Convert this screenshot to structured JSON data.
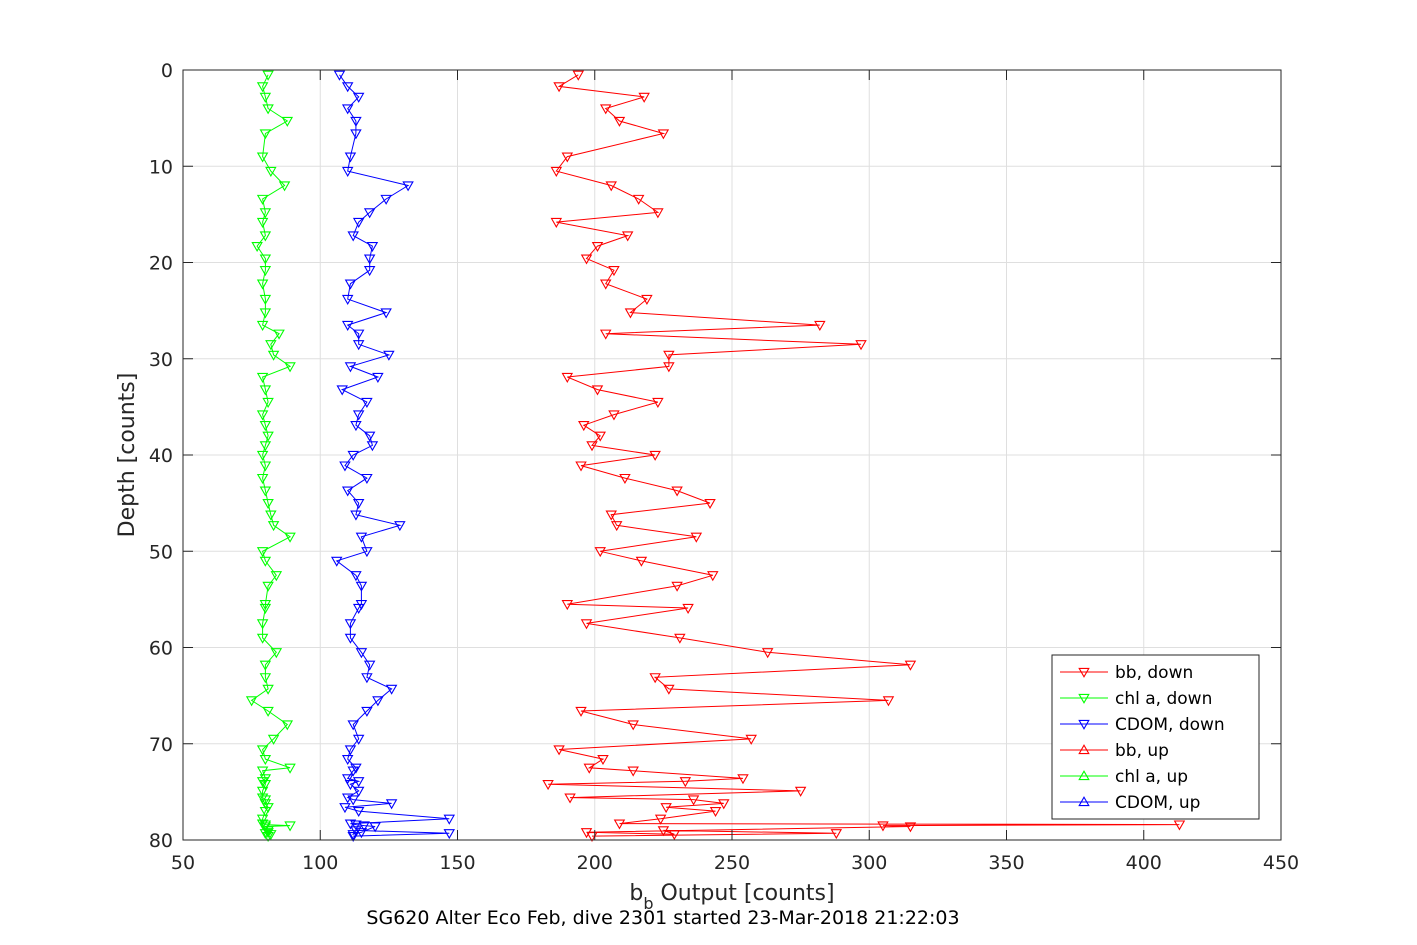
{
  "chart_data": {
    "type": "line",
    "title": "",
    "caption": "SG620 Alter Eco Feb, dive 2301 started 23-Mar-2018 21:22:03",
    "xlabel_main": "b",
    "xlabel_sub": "b",
    "xlabel_rest": " Output [counts]",
    "ylabel": "Depth [counts]",
    "xlim": [
      50,
      450
    ],
    "ylim": [
      0,
      80
    ],
    "y_reversed": true,
    "grid": true,
    "xticks": [
      "50",
      "100",
      "150",
      "200",
      "250",
      "300",
      "350",
      "400",
      "450"
    ],
    "yticks": [
      "0",
      "10",
      "20",
      "30",
      "40",
      "50",
      "60",
      "70",
      "80"
    ],
    "legend_position": "bottom-right",
    "series": [
      {
        "name": "bb, down",
        "color": "#ff0000",
        "marker": "triangle-down",
        "x": [
          194,
          187,
          218,
          204,
          209,
          225,
          190,
          186,
          206,
          216,
          223,
          186,
          212,
          201,
          197,
          207,
          204,
          219,
          213,
          282,
          204,
          297,
          227,
          227,
          190,
          201,
          223,
          207,
          196,
          202,
          199,
          222,
          195,
          211,
          230,
          242,
          206,
          208,
          237,
          202,
          217,
          243,
          230,
          190,
          234,
          197,
          231,
          263,
          315,
          222,
          227,
          307,
          195,
          214,
          257,
          187,
          203,
          198,
          214,
          254,
          233,
          183,
          275,
          191,
          236,
          247,
          226,
          244,
          224,
          209,
          413,
          305,
          315,
          197,
          229,
          225,
          288,
          199
        ],
        "y": [
          0.5,
          1.7,
          2.8,
          4.0,
          5.3,
          6.6,
          9.0,
          10.5,
          12.0,
          13.4,
          14.8,
          15.8,
          17.2,
          18.3,
          19.6,
          20.8,
          22.2,
          23.8,
          25.2,
          26.5,
          27.4,
          28.5,
          29.6,
          30.8,
          31.9,
          33.2,
          34.5,
          35.8,
          36.9,
          38.0,
          39.0,
          40.0,
          41.1,
          42.4,
          43.7,
          45.0,
          46.2,
          47.3,
          48.5,
          50.0,
          51.0,
          52.5,
          53.6,
          55.5,
          55.9,
          57.5,
          59.0,
          60.5,
          61.8,
          63.1,
          64.3,
          65.5,
          66.6,
          68.0,
          69.5,
          70.6,
          71.6,
          72.5,
          72.8,
          73.6,
          73.9,
          74.2,
          74.9,
          75.6,
          75.8,
          76.2,
          76.6,
          77.0,
          77.8,
          78.3,
          78.4,
          78.5,
          78.6,
          79.2,
          79.4,
          79.0,
          79.3,
          79.6
        ]
      },
      {
        "name": "chl a, down",
        "color": "#00ff00",
        "marker": "triangle-down",
        "x": [
          81,
          79,
          80,
          81,
          88,
          80,
          79,
          82,
          87,
          79,
          80,
          79,
          80,
          77,
          80,
          80,
          79,
          80,
          80,
          79,
          85,
          82,
          83,
          89,
          79,
          80,
          81,
          79,
          80,
          81,
          80,
          79,
          80,
          79,
          80,
          81,
          82,
          83,
          89,
          79,
          80,
          84,
          81,
          80,
          80,
          79,
          79,
          84,
          80,
          80,
          81,
          75,
          81,
          88,
          83,
          79,
          80,
          89,
          79,
          80,
          79,
          80,
          79,
          79,
          80,
          80,
          81,
          80,
          79,
          79,
          80,
          89,
          80,
          81,
          82,
          81,
          80,
          81
        ],
        "y": [
          0.5,
          1.7,
          2.8,
          4.0,
          5.3,
          6.6,
          9.0,
          10.5,
          12.0,
          13.4,
          14.8,
          15.8,
          17.2,
          18.3,
          19.6,
          20.8,
          22.2,
          23.8,
          25.2,
          26.5,
          27.4,
          28.5,
          29.6,
          30.8,
          31.9,
          33.2,
          34.5,
          35.8,
          36.9,
          38.0,
          39.0,
          40.0,
          41.1,
          42.4,
          43.7,
          45.0,
          46.2,
          47.3,
          48.5,
          50.0,
          51.0,
          52.5,
          53.6,
          55.5,
          55.9,
          57.5,
          59.0,
          60.5,
          61.8,
          63.1,
          64.3,
          65.5,
          66.6,
          68.0,
          69.5,
          70.6,
          71.6,
          72.5,
          72.8,
          73.6,
          73.9,
          74.2,
          74.9,
          75.6,
          75.8,
          76.2,
          76.6,
          77.0,
          77.8,
          78.3,
          78.4,
          78.5,
          78.6,
          79.2,
          79.4,
          79.0,
          79.3,
          79.6
        ]
      },
      {
        "name": "CDOM, down",
        "color": "#0000ff",
        "marker": "triangle-down",
        "x": [
          107,
          110,
          114,
          110,
          113,
          113,
          111,
          110,
          132,
          124,
          118,
          114,
          112,
          119,
          118,
          118,
          111,
          110,
          124,
          110,
          114,
          114,
          125,
          111,
          121,
          108,
          117,
          114,
          113,
          118,
          119,
          112,
          109,
          117,
          110,
          114,
          113,
          129,
          115,
          117,
          106,
          113,
          115,
          115,
          114,
          111,
          111,
          115,
          118,
          117,
          126,
          121,
          117,
          112,
          114,
          111,
          110,
          113,
          112,
          110,
          114,
          111,
          114,
          110,
          112,
          126,
          109,
          114,
          147,
          111,
          113,
          116,
          120,
          115,
          112,
          113,
          147,
          112
        ],
        "y": [
          0.5,
          1.7,
          2.8,
          4.0,
          5.3,
          6.6,
          9.0,
          10.5,
          12.0,
          13.4,
          14.8,
          15.8,
          17.2,
          18.3,
          19.6,
          20.8,
          22.2,
          23.8,
          25.2,
          26.5,
          27.4,
          28.5,
          29.6,
          30.8,
          31.9,
          33.2,
          34.5,
          35.8,
          36.9,
          38.0,
          39.0,
          40.0,
          41.1,
          42.4,
          43.7,
          45.0,
          46.2,
          47.3,
          48.5,
          50.0,
          51.0,
          52.5,
          53.6,
          55.5,
          55.9,
          57.5,
          59.0,
          60.5,
          61.8,
          63.1,
          64.3,
          65.5,
          66.6,
          68.0,
          69.5,
          70.6,
          71.6,
          72.5,
          72.8,
          73.6,
          73.9,
          74.2,
          74.9,
          75.6,
          75.8,
          76.2,
          76.6,
          77.0,
          77.8,
          78.3,
          78.4,
          78.5,
          78.6,
          79.2,
          79.4,
          79.0,
          79.3,
          79.6
        ]
      },
      {
        "name": "bb, up",
        "color": "#ff0000",
        "marker": "triangle-up",
        "x": [],
        "y": []
      },
      {
        "name": "chl a, up",
        "color": "#00ff00",
        "marker": "triangle-up",
        "x": [],
        "y": []
      },
      {
        "name": "CDOM, up",
        "color": "#0000ff",
        "marker": "triangle-up",
        "x": [],
        "y": []
      }
    ]
  }
}
